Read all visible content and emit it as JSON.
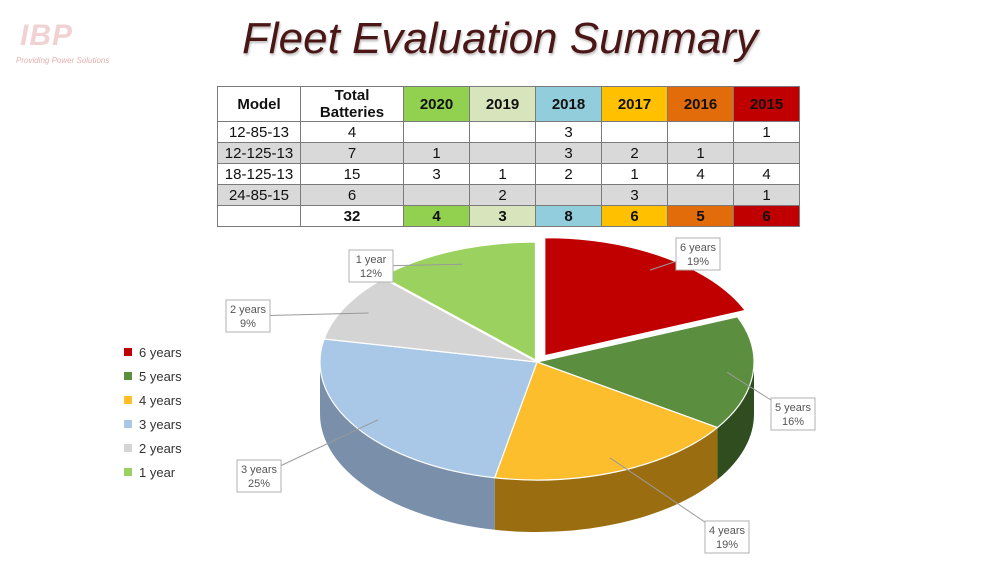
{
  "logo": {
    "text": "IBP",
    "tagline": "Providing Power Solutions"
  },
  "title": "Fleet Evaluation Summary",
  "table": {
    "headers": [
      "Model",
      "Total Batteries",
      "2020",
      "2019",
      "2018",
      "2017",
      "2016",
      "2015"
    ],
    "year_colors": [
      "#92d050",
      "#d8e4bc",
      "#92cddc",
      "#ffc000",
      "#e26b0a",
      "#c00000"
    ],
    "rows": [
      [
        "12-85-13",
        "4",
        "",
        "",
        "3",
        "",
        "",
        "1"
      ],
      [
        "12-125-13",
        "7",
        "1",
        "",
        "3",
        "2",
        "1",
        ""
      ],
      [
        "18-125-13",
        "15",
        "3",
        "1",
        "2",
        "1",
        "4",
        "4"
      ],
      [
        "24-85-15",
        "6",
        "",
        "2",
        "",
        "3",
        "",
        "1"
      ]
    ],
    "totals": [
      "",
      "32",
      "4",
      "3",
      "8",
      "6",
      "5",
      "6"
    ]
  },
  "chart_data": {
    "type": "pie",
    "style": "3d-exploded",
    "categories": [
      "6 years",
      "5 years",
      "4 years",
      "3 years",
      "2 years",
      "1 year"
    ],
    "values": [
      6,
      5,
      6,
      8,
      3,
      4
    ],
    "percent_labels": [
      "19%",
      "16%",
      "19%",
      "25%",
      "9%",
      "12%"
    ],
    "colors": [
      "#c00000",
      "#5b8e3e",
      "#fdbe2d",
      "#a9c7e6",
      "#d4d4d4",
      "#9bd25f"
    ],
    "side_colors": [
      "#7a0000",
      "#2f4d1f",
      "#9a6e10",
      "#7a90aa",
      "#9a9a9a",
      "#6a9a3a"
    ],
    "legend": {
      "position": "left",
      "items": [
        "6 years",
        "5 years",
        "4 years",
        "3 years",
        "2 years",
        "1 year"
      ]
    }
  }
}
